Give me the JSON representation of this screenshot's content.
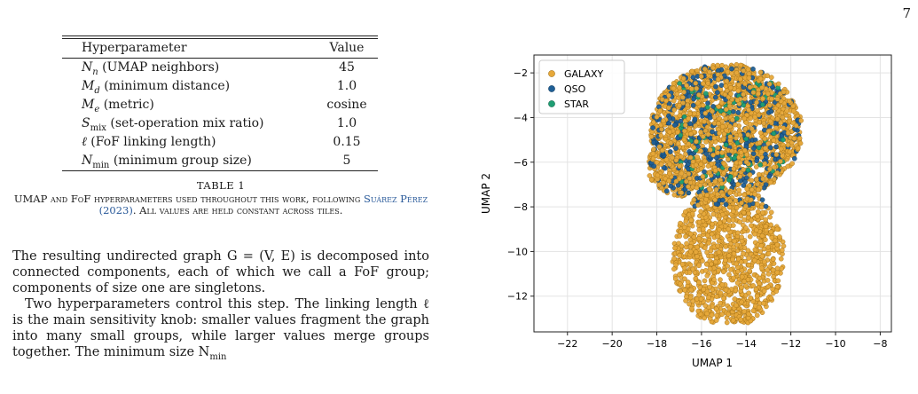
{
  "page_number": "7",
  "table": {
    "header": {
      "param": "Hyperparameter",
      "value": "Value"
    },
    "rows": [
      {
        "sym": "N",
        "sub": "n",
        "desc": " (UMAP neighbors)",
        "value": "45"
      },
      {
        "sym": "M",
        "sub": "d",
        "desc": " (minimum distance)",
        "value": "1.0"
      },
      {
        "sym": "M",
        "sub": "e",
        "desc": " (metric)",
        "value": "cosine"
      },
      {
        "sym": "S",
        "sub": "mix",
        "desc": " (set-operation mix ratio)",
        "value": "1.0"
      },
      {
        "sym": "ℓ",
        "sub": "",
        "desc": " (FoF linking length)",
        "value": "0.15"
      },
      {
        "sym": "N",
        "sub": "min",
        "desc": " (minimum group size)",
        "value": "5"
      }
    ]
  },
  "caption": {
    "title": "TABLE 1",
    "body_before": "UMAP and FoF hyperparameters used throughout this work, following ",
    "cite": "Suárez Pérez (2023)",
    "body_after": ". All values are held constant across tiles."
  },
  "body": {
    "p1": "The resulting undirected graph G = (V, E) is decomposed into connected components, each of which we call a FoF group; components of size one are singletons.",
    "p2": "Two hyperparameters control this step. The linking length ℓ is the main sensitivity knob: smaller values fragment the graph into many small groups, while larger values merge groups together. The minimum size N",
    "p2_sub": "min"
  },
  "chart_data": {
    "type": "scatter",
    "xlabel": "UMAP 1",
    "ylabel": "UMAP 2",
    "xlim": [
      -23.5,
      -7.5
    ],
    "ylim": [
      -13.6,
      -1.2
    ],
    "xticks": [
      -22,
      -20,
      -18,
      -16,
      -14,
      -12,
      -10,
      -8
    ],
    "yticks": [
      -2,
      -4,
      -6,
      -8,
      -10,
      -12
    ],
    "grid": true,
    "legend_position": "top-left",
    "series": [
      {
        "name": "GALAXY",
        "color": "#E6A83A",
        "edge": "#9a6a10",
        "count": 2400
      },
      {
        "name": "QSO",
        "color": "#1F5F96",
        "edge": "#0e3558",
        "count": 420
      },
      {
        "name": "STAR",
        "color": "#1E9E73",
        "edge": "#0d5c41",
        "count": 70
      }
    ]
  }
}
